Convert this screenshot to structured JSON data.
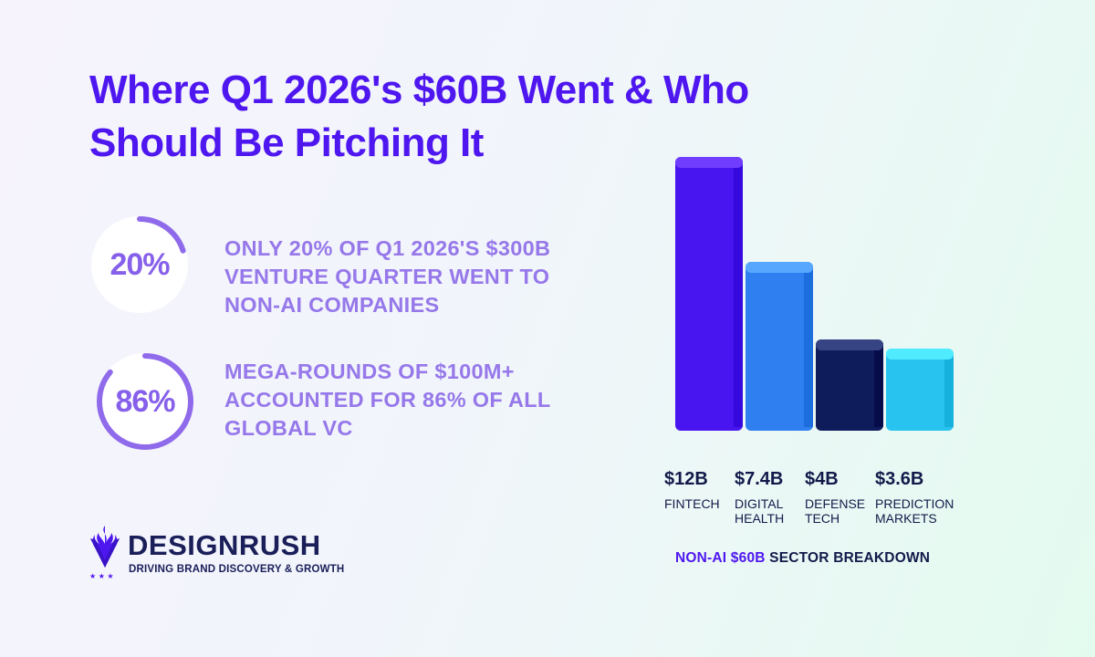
{
  "title_line1": "Where Q1 2026's $60B Went & Who",
  "title_line2": "Should Be Pitching It",
  "stats": [
    {
      "value": "20%",
      "percent": 20,
      "lines": [
        "ONLY 20% OF Q1 2026'S $300B",
        "VENTURE QUARTER WENT TO",
        "NON-AI COMPANIES"
      ]
    },
    {
      "value": "86%",
      "percent": 86,
      "lines": [
        "MEGA-ROUNDS OF $100M+",
        "ACCOUNTED FOR 86% OF ALL",
        "GLOBAL VC"
      ]
    }
  ],
  "brand": {
    "name": "DESIGNRUSH",
    "tagline": "DRIVING BRAND DISCOVERY & GROWTH"
  },
  "colors": {
    "title": "#4f17f0",
    "stat_text": "#9678ea",
    "ring_fill": "#8f6aeb",
    "ring_track": "#ffffff"
  },
  "chart_data": {
    "type": "bar",
    "title_accent": "NON-AI $60B",
    "title_rest": " SECTOR BREAKDOWN",
    "categories": [
      [
        "FINTECH"
      ],
      [
        "DIGITAL",
        "HEALTH"
      ],
      [
        "DEFENSE",
        "TECH"
      ],
      [
        "PREDICTION",
        "MARKETS"
      ]
    ],
    "values": [
      12,
      7.4,
      4,
      3.6
    ],
    "value_labels": [
      "$12B",
      "$7.4B",
      "$4B",
      "$3.6B"
    ],
    "unit": "$B",
    "colors": [
      "#4815f0",
      "#2f7ff0",
      "#0f1c5c",
      "#28c3ef"
    ],
    "grid": false,
    "legend": "none"
  }
}
